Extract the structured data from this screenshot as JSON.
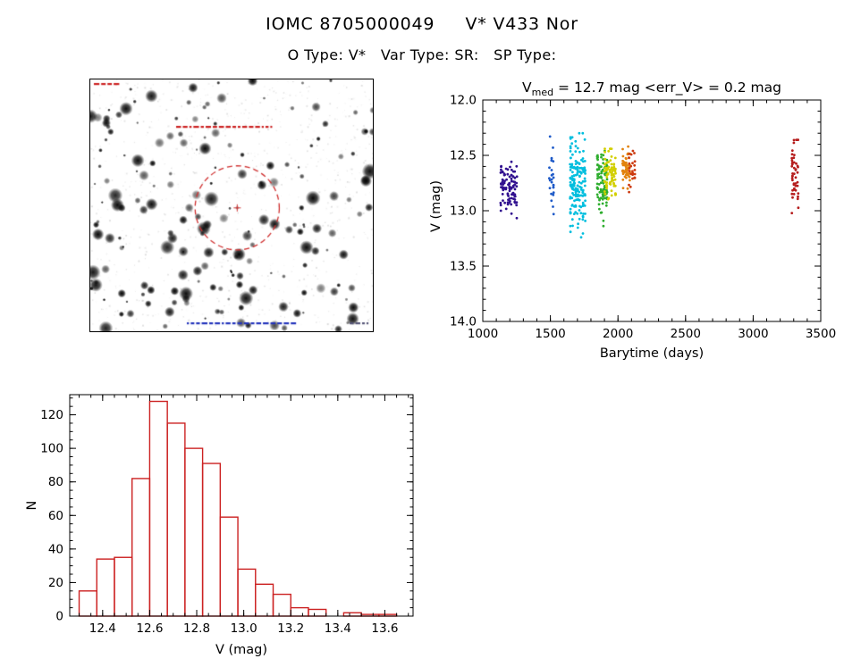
{
  "page": {
    "title": "IOMC 8705000049     V* V433 Nor",
    "subtitle": "O Type: V*   Var Type: SR:   SP Type:"
  },
  "finder": {
    "label": "finding-chart",
    "marker": "dashed-circle",
    "marker_color": "#d03030"
  },
  "chart_data": [
    {
      "id": "lightcurve",
      "type": "scatter",
      "title": "V_med = 12.7 mag <err_V> = 0.2 mag",
      "title_parts": {
        "prefix": "V",
        "sub": "med",
        "rest": " = 12.7 mag <err_V> = 0.2 mag"
      },
      "xlabel": "Barytime (days)",
      "ylabel": "V (mag)",
      "xlim": [
        1000,
        3500
      ],
      "ylim": [
        14.0,
        12.0
      ],
      "y_axis_inverted": true,
      "x_ticks": [
        1000,
        1500,
        2000,
        2500,
        3000,
        3500
      ],
      "x_tick_labels": [
        "1000",
        "1500",
        "2000",
        "2500",
        "3000",
        "3500"
      ],
      "x_minor_step": 100,
      "y_ticks": [
        12.0,
        12.5,
        13.0,
        13.5,
        14.0
      ],
      "y_tick_labels": [
        "12.0",
        "12.5",
        "13.0",
        "13.5",
        "14.0"
      ],
      "y_minor_step": 0.1,
      "series": [
        {
          "name": "epoch-1",
          "color": "#31108f",
          "x_range": [
            1128,
            1258
          ],
          "v_mean": 12.8,
          "v_sd": 0.11,
          "v_min": 12.55,
          "v_max": 13.2,
          "n": 95
        },
        {
          "name": "epoch-2",
          "color": "#1e5ac8",
          "x_range": [
            1488,
            1528
          ],
          "v_mean": 12.7,
          "v_sd": 0.2,
          "v_min": 12.33,
          "v_max": 13.17,
          "n": 26
        },
        {
          "name": "epoch-3",
          "color": "#00bede",
          "x_range": [
            1642,
            1762
          ],
          "v_mean": 12.76,
          "v_sd": 0.2,
          "v_min": 12.3,
          "v_max": 13.62,
          "n": 170
        },
        {
          "name": "epoch-4",
          "color": "#2fae2f",
          "x_range": [
            1842,
            1924
          ],
          "v_mean": 12.74,
          "v_sd": 0.14,
          "v_min": 12.46,
          "v_max": 13.26,
          "n": 105
        },
        {
          "name": "epoch-5",
          "color": "#d2cf00",
          "x_range": [
            1896,
            1988
          ],
          "v_mean": 12.66,
          "v_sd": 0.1,
          "v_min": 12.44,
          "v_max": 12.98,
          "n": 75
        },
        {
          "name": "epoch-6",
          "color": "#e2830f",
          "x_range": [
            2030,
            2092
          ],
          "v_mean": 12.63,
          "v_sd": 0.09,
          "v_min": 12.42,
          "v_max": 12.9,
          "n": 55
        },
        {
          "name": "epoch-7",
          "color": "#cc3a10",
          "x_range": [
            2076,
            2130
          ],
          "v_mean": 12.62,
          "v_sd": 0.08,
          "v_min": 12.46,
          "v_max": 12.86,
          "n": 26
        },
        {
          "name": "epoch-8",
          "color": "#b51c1c",
          "x_range": [
            3282,
            3338
          ],
          "v_mean": 12.68,
          "v_sd": 0.17,
          "v_min": 12.36,
          "v_max": 13.1,
          "n": 48
        }
      ]
    },
    {
      "id": "histogram",
      "type": "bar",
      "xlabel": "V (mag)",
      "ylabel": "N",
      "xlim": [
        12.26,
        13.72
      ],
      "ylim": [
        0,
        132
      ],
      "x_ticks": [
        12.4,
        12.6,
        12.8,
        13.0,
        13.2,
        13.4,
        13.6
      ],
      "x_tick_labels": [
        "12.4",
        "12.6",
        "12.8",
        "13.0",
        "13.2",
        "13.4",
        "13.6"
      ],
      "x_minor_step": 0.05,
      "y_ticks": [
        0,
        20,
        40,
        60,
        80,
        100,
        120
      ],
      "y_tick_labels": [
        "0",
        "20",
        "40",
        "60",
        "80",
        "100",
        "120"
      ],
      "y_minor_step": 5,
      "bar_color": "#cc2222",
      "bin_start": 12.3,
      "bin_width": 0.075,
      "counts": [
        15,
        34,
        35,
        82,
        128,
        115,
        100,
        91,
        59,
        28,
        19,
        13,
        5,
        4,
        0,
        2,
        1,
        1
      ]
    }
  ]
}
